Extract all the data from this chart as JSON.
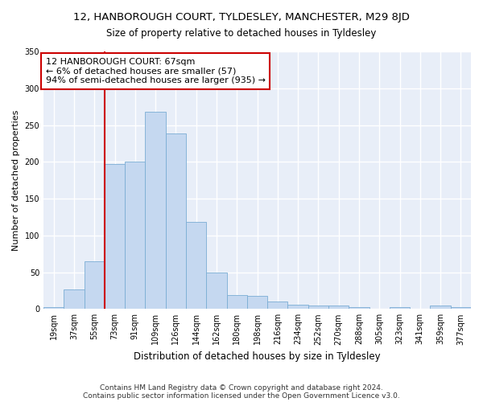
{
  "title": "12, HANBOROUGH COURT, TYLDESLEY, MANCHESTER, M29 8JD",
  "subtitle": "Size of property relative to detached houses in Tyldesley",
  "xlabel": "Distribution of detached houses by size in Tyldesley",
  "ylabel": "Number of detached properties",
  "bin_labels": [
    "19sqm",
    "37sqm",
    "55sqm",
    "73sqm",
    "91sqm",
    "109sqm",
    "126sqm",
    "144sqm",
    "162sqm",
    "180sqm",
    "198sqm",
    "216sqm",
    "234sqm",
    "252sqm",
    "270sqm",
    "288sqm",
    "305sqm",
    "323sqm",
    "341sqm",
    "359sqm",
    "377sqm"
  ],
  "bar_heights": [
    2,
    27,
    65,
    197,
    200,
    268,
    238,
    118,
    50,
    19,
    18,
    10,
    6,
    5,
    5,
    2,
    0,
    3,
    0,
    5,
    3
  ],
  "bar_color": "#c5d8f0",
  "bar_edge_color": "#7aadd4",
  "vline_color": "#cc0000",
  "annotation_text": "12 HANBOROUGH COURT: 67sqm\n← 6% of detached houses are smaller (57)\n94% of semi-detached houses are larger (935) →",
  "annotation_box_color": "#ffffff",
  "annotation_box_edge": "#cc0000",
  "ylim": [
    0,
    350
  ],
  "yticks": [
    0,
    50,
    100,
    150,
    200,
    250,
    300,
    350
  ],
  "bg_color": "#e8eef8",
  "grid_color": "#ffffff",
  "footer": "Contains HM Land Registry data © Crown copyright and database right 2024.\nContains public sector information licensed under the Open Government Licence v3.0."
}
